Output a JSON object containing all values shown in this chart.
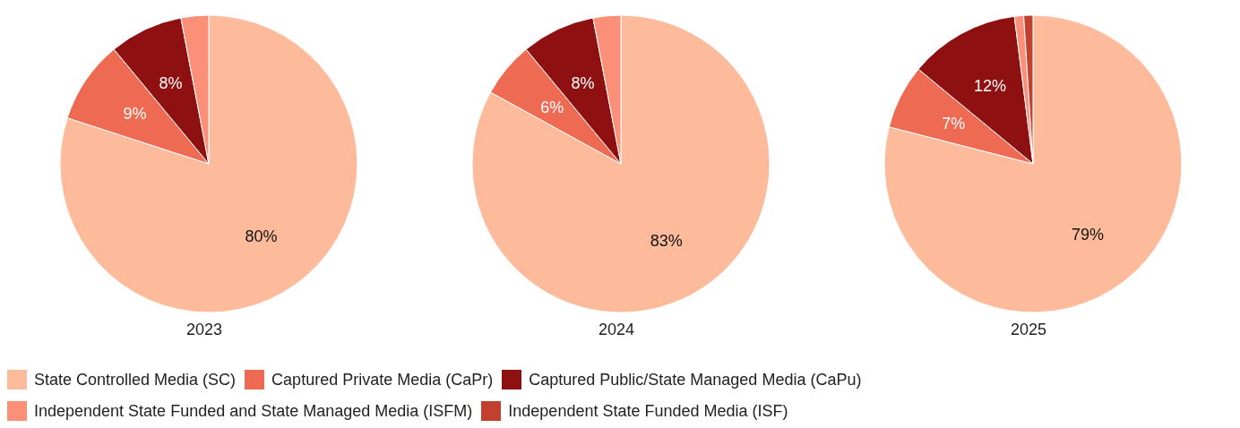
{
  "chart_data": [
    {
      "type": "pie",
      "title": "2023",
      "legend": "bottom",
      "categories": [
        "State Controlled Media (SC)",
        "Captured Private Media (CaPr)",
        "Captured Public/State Managed Media (CaPu)",
        "Independent State Funded and State Managed Media (ISFM)",
        "Independent State Funded Media (ISF)"
      ],
      "values": [
        80,
        9,
        8,
        3,
        0
      ],
      "colors": [
        "#fdbb9c",
        "#ef6a53",
        "#8f1011",
        "#fc8f77",
        "#c2412e"
      ],
      "value_labels": [
        "80%",
        "9%",
        "8%",
        null,
        null
      ]
    },
    {
      "type": "pie",
      "title": "2024",
      "categories": [
        null,
        null,
        null,
        null,
        null
      ],
      "values": [
        83,
        6,
        8,
        3,
        0
      ],
      "colors": [
        "#fdbb9c",
        "#ef6a53",
        "#8f1011",
        "#fc8f77",
        "#c2412e"
      ],
      "value_labels": [
        "83%",
        "6%",
        "8%",
        null,
        null
      ]
    },
    {
      "type": "pie",
      "title": "2025",
      "categories": [
        null,
        null,
        null,
        null,
        null
      ],
      "values": [
        79,
        7,
        12,
        1,
        1
      ],
      "colors": [
        "#fdbb9c",
        "#ef6a53",
        "#8f1011",
        "#fc8f77",
        "#c2412e"
      ],
      "value_labels": [
        "79%",
        "7%",
        "12%",
        null,
        null
      ]
    }
  ]
}
